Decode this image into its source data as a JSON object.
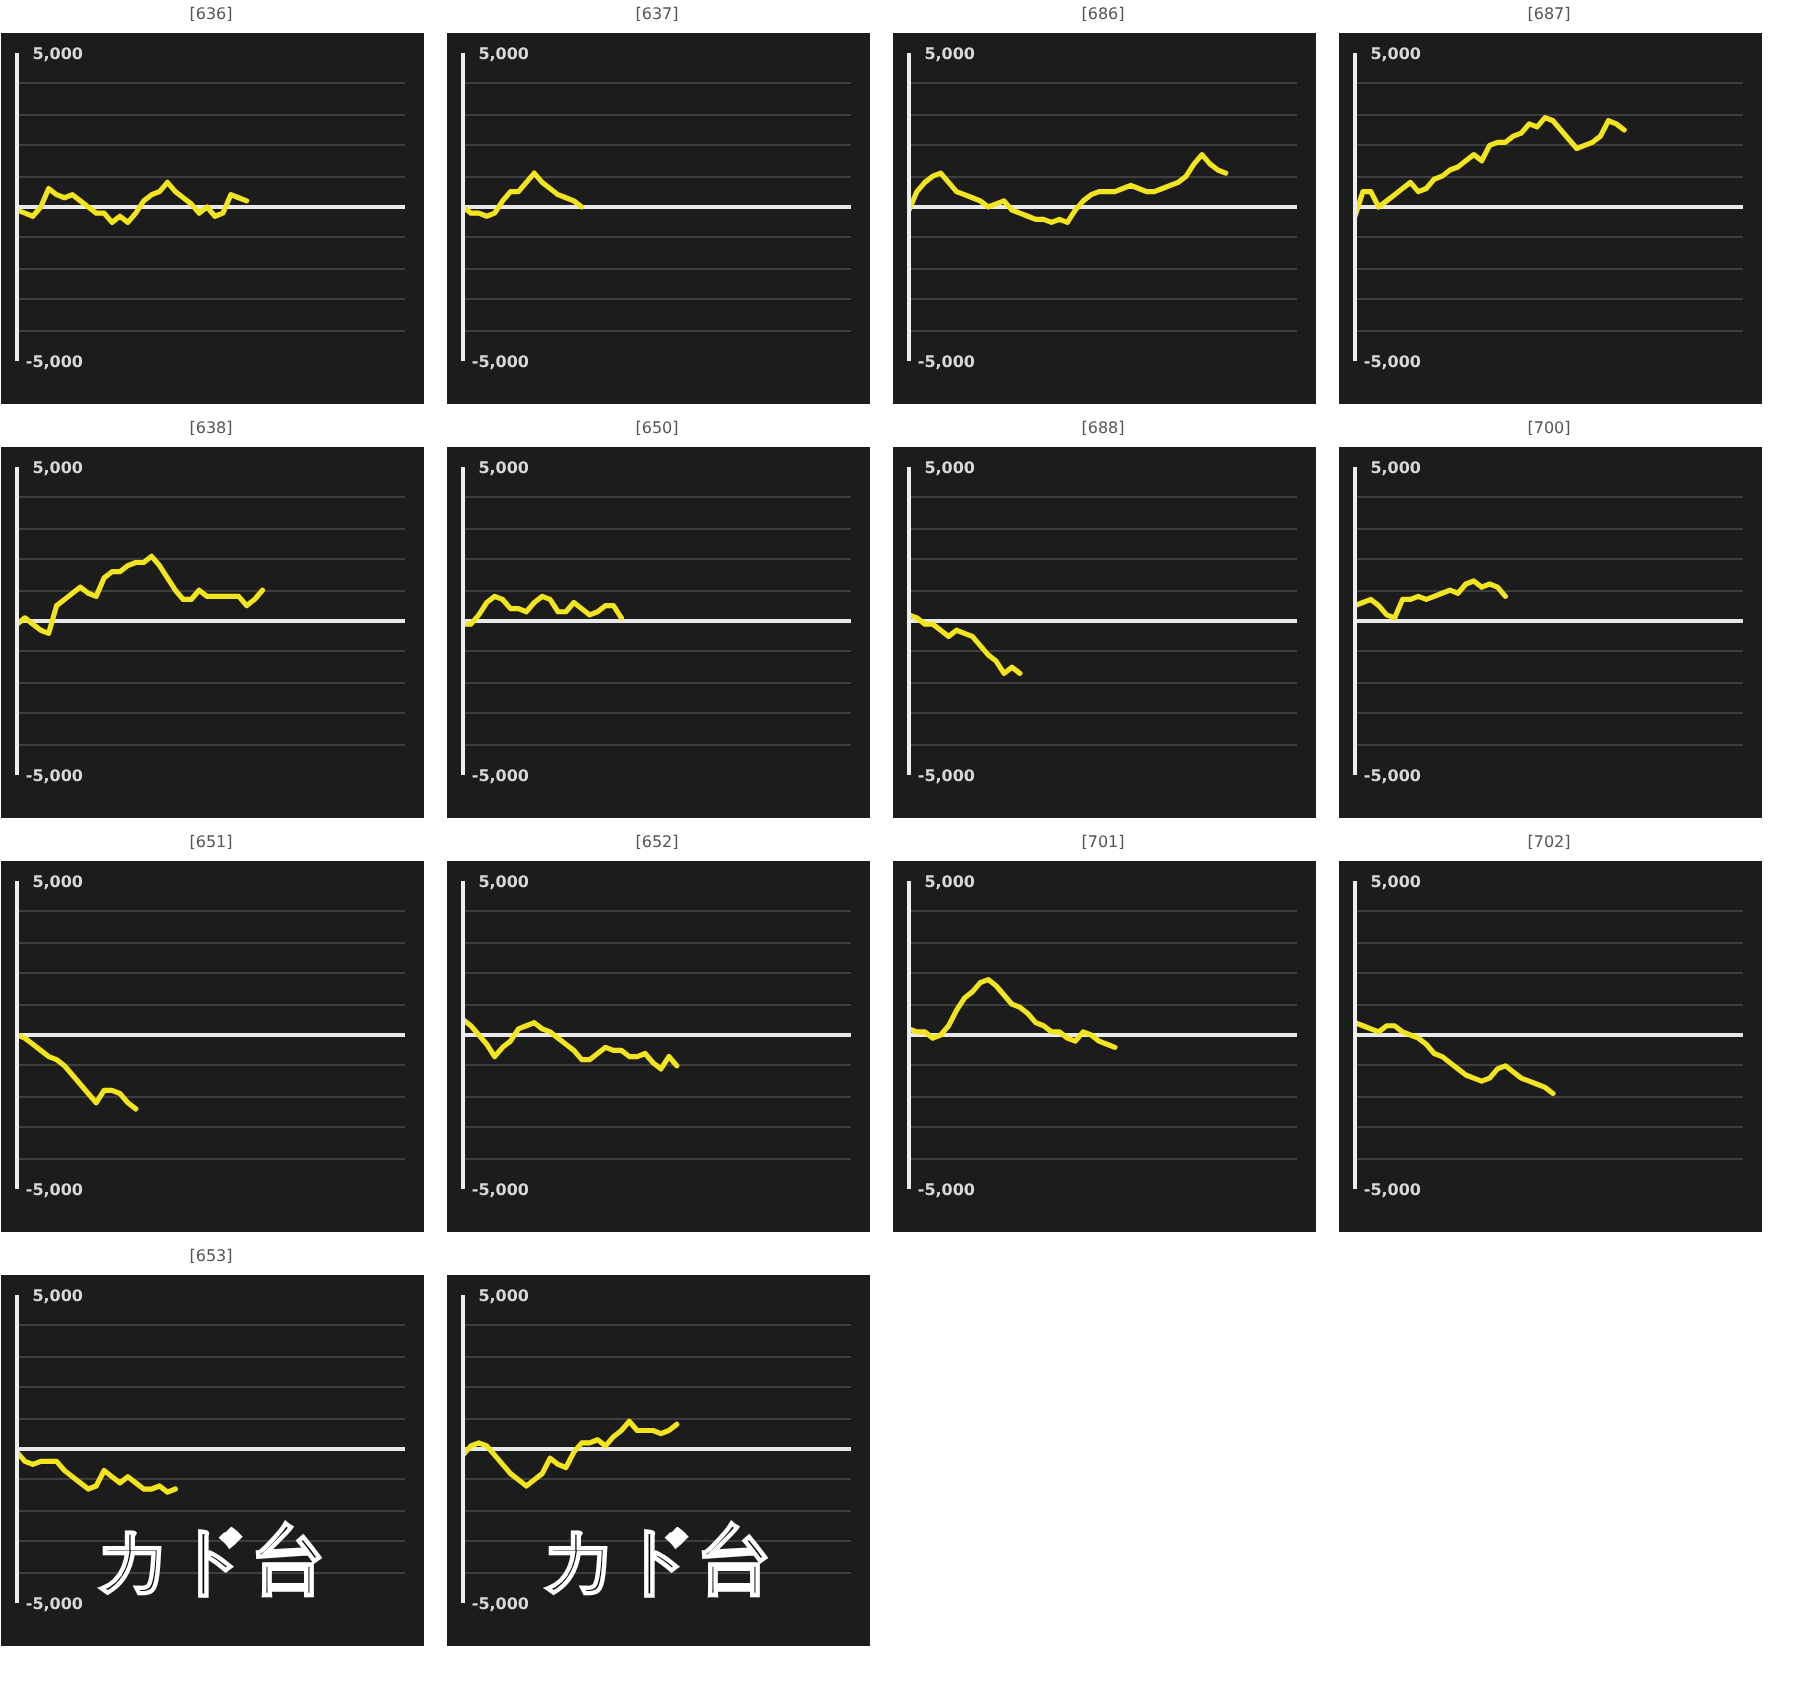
{
  "chart_data": [
    {
      "type": "line",
      "title": "[636]",
      "categories": [
        null,
        null,
        null,
        null,
        null,
        null,
        null,
        null,
        null,
        null,
        null,
        null,
        null,
        null,
        null,
        null,
        null,
        null,
        null,
        null,
        null,
        null,
        null,
        null,
        null,
        null,
        null,
        null,
        null,
        null,
        null,
        null,
        null,
        null,
        null,
        null,
        null,
        null,
        null,
        null,
        null,
        null,
        null,
        null,
        null,
        null,
        null,
        null,
        null,
        null
      ],
      "series": [
        {
          "color": "#f2e520",
          "values": [
            -100,
            -200,
            -300,
            0,
            600,
            400,
            300,
            400,
            200,
            0,
            -200,
            -200,
            -500,
            -300,
            -500,
            -200,
            200,
            400,
            500,
            800,
            500,
            300,
            100,
            -200,
            0,
            -300,
            -200,
            400,
            300,
            200,
            null,
            null,
            null,
            null,
            null,
            null,
            null,
            null,
            null,
            null,
            null,
            null,
            null,
            null,
            null,
            null,
            null,
            null,
            null,
            null
          ]
        }
      ],
      "ylim": [
        -5000,
        5000
      ],
      "yticks": [
        {
          "value": 5000,
          "label": "5,000"
        },
        {
          "value": 4000,
          "label": null
        },
        {
          "value": 3000,
          "label": null
        },
        {
          "value": 2000,
          "label": null
        },
        {
          "value": 1000,
          "label": null
        },
        {
          "value": 0,
          "label": null
        },
        {
          "value": -1000,
          "label": null
        },
        {
          "value": -2000,
          "label": null
        },
        {
          "value": -3000,
          "label": null
        },
        {
          "value": -4000,
          "label": null
        },
        {
          "value": -5000,
          "label": "-5,000"
        }
      ],
      "grid": "y",
      "tick_labels": "y",
      "ref_lines": [
        {
          "axis": "y",
          "value": 0,
          "color": "#e8e8e8"
        }
      ]
    },
    {
      "type": "line",
      "title": "[637]",
      "categories": [
        null,
        null,
        null,
        null,
        null,
        null,
        null,
        null,
        null,
        null,
        null,
        null,
        null,
        null,
        null,
        null,
        null,
        null,
        null,
        null,
        null,
        null,
        null,
        null,
        null,
        null,
        null,
        null,
        null,
        null,
        null,
        null,
        null,
        null,
        null,
        null,
        null,
        null,
        null,
        null,
        null,
        null,
        null,
        null,
        null,
        null,
        null,
        null,
        null,
        null
      ],
      "series": [
        {
          "color": "#f2e520",
          "values": [
            0,
            -200,
            -200,
            -300,
            -200,
            200,
            500,
            500,
            800,
            1100,
            800,
            600,
            400,
            300,
            200,
            0,
            null,
            null,
            null,
            null,
            null,
            null,
            null,
            null,
            null,
            null,
            null,
            null,
            null,
            null,
            null,
            null,
            null,
            null,
            null,
            null,
            null,
            null,
            null,
            null,
            null,
            null,
            null,
            null,
            null,
            null,
            null,
            null,
            null,
            null
          ]
        }
      ],
      "ylim": [
        -5000,
        5000
      ],
      "yticks": [
        {
          "value": 5000,
          "label": "5,000"
        },
        {
          "value": 4000,
          "label": null
        },
        {
          "value": 3000,
          "label": null
        },
        {
          "value": 2000,
          "label": null
        },
        {
          "value": 1000,
          "label": null
        },
        {
          "value": 0,
          "label": null
        },
        {
          "value": -1000,
          "label": null
        },
        {
          "value": -2000,
          "label": null
        },
        {
          "value": -3000,
          "label": null
        },
        {
          "value": -4000,
          "label": null
        },
        {
          "value": -5000,
          "label": "-5,000"
        }
      ],
      "grid": "y",
      "tick_labels": "y",
      "ref_lines": [
        {
          "axis": "y",
          "value": 0,
          "color": "#e8e8e8"
        }
      ]
    },
    {
      "type": "line",
      "title": "[686]",
      "categories": [
        null,
        null,
        null,
        null,
        null,
        null,
        null,
        null,
        null,
        null,
        null,
        null,
        null,
        null,
        null,
        null,
        null,
        null,
        null,
        null,
        null,
        null,
        null,
        null,
        null,
        null,
        null,
        null,
        null,
        null,
        null,
        null,
        null,
        null,
        null,
        null,
        null,
        null,
        null,
        null,
        null,
        null,
        null,
        null,
        null,
        null,
        null,
        null,
        null,
        null
      ],
      "series": [
        {
          "color": "#f2e520",
          "values": [
            -100,
            500,
            800,
            1000,
            1100,
            800,
            500,
            400,
            300,
            200,
            0,
            100,
            200,
            -100,
            -200,
            -300,
            -400,
            -400,
            -500,
            -400,
            -500,
            -100,
            200,
            400,
            500,
            500,
            500,
            600,
            700,
            600,
            500,
            500,
            600,
            700,
            800,
            1000,
            1400,
            1700,
            1400,
            1200,
            1100,
            null,
            null,
            null,
            null,
            null,
            null,
            null,
            null,
            null
          ]
        }
      ],
      "ylim": [
        -5000,
        5000
      ],
      "yticks": [
        {
          "value": 5000,
          "label": "5,000"
        },
        {
          "value": 4000,
          "label": null
        },
        {
          "value": 3000,
          "label": null
        },
        {
          "value": 2000,
          "label": null
        },
        {
          "value": 1000,
          "label": null
        },
        {
          "value": 0,
          "label": null
        },
        {
          "value": -1000,
          "label": null
        },
        {
          "value": -2000,
          "label": null
        },
        {
          "value": -3000,
          "label": null
        },
        {
          "value": -4000,
          "label": null
        },
        {
          "value": -5000,
          "label": "-5,000"
        }
      ],
      "grid": "y",
      "tick_labels": "y",
      "ref_lines": [
        {
          "axis": "y",
          "value": 0,
          "color": "#e8e8e8"
        }
      ]
    },
    {
      "type": "line",
      "title": "[687]",
      "categories": [
        null,
        null,
        null,
        null,
        null,
        null,
        null,
        null,
        null,
        null,
        null,
        null,
        null,
        null,
        null,
        null,
        null,
        null,
        null,
        null,
        null,
        null,
        null,
        null,
        null,
        null,
        null,
        null,
        null,
        null,
        null,
        null,
        null,
        null,
        null,
        null,
        null,
        null,
        null,
        null,
        null,
        null,
        null,
        null,
        null,
        null,
        null,
        null,
        null,
        null
      ],
      "series": [
        {
          "color": "#f2e520",
          "values": [
            -300,
            500,
            500,
            0,
            200,
            400,
            600,
            800,
            500,
            600,
            900,
            1000,
            1200,
            1300,
            1500,
            1700,
            1500,
            2000,
            2100,
            2100,
            2300,
            2400,
            2700,
            2600,
            2900,
            2800,
            2500,
            2200,
            1900,
            2000,
            2100,
            2300,
            2800,
            2700,
            2500,
            null,
            null,
            null,
            null,
            null,
            null,
            null,
            null,
            null,
            null,
            null,
            null,
            null,
            null,
            null
          ]
        }
      ],
      "ylim": [
        -5000,
        5000
      ],
      "yticks": [
        {
          "value": 5000,
          "label": "5,000"
        },
        {
          "value": 4000,
          "label": null
        },
        {
          "value": 3000,
          "label": null
        },
        {
          "value": 2000,
          "label": null
        },
        {
          "value": 1000,
          "label": null
        },
        {
          "value": 0,
          "label": null
        },
        {
          "value": -1000,
          "label": null
        },
        {
          "value": -2000,
          "label": null
        },
        {
          "value": -3000,
          "label": null
        },
        {
          "value": -4000,
          "label": null
        },
        {
          "value": -5000,
          "label": "-5,000"
        }
      ],
      "grid": "y",
      "tick_labels": "y",
      "ref_lines": [
        {
          "axis": "y",
          "value": 0,
          "color": "#e8e8e8"
        }
      ]
    },
    {
      "type": "line",
      "title": "[638]",
      "categories": [
        null,
        null,
        null,
        null,
        null,
        null,
        null,
        null,
        null,
        null,
        null,
        null,
        null,
        null,
        null,
        null,
        null,
        null,
        null,
        null,
        null,
        null,
        null,
        null,
        null,
        null,
        null,
        null,
        null,
        null,
        null,
        null,
        null,
        null,
        null,
        null,
        null,
        null,
        null,
        null,
        null,
        null,
        null,
        null,
        null,
        null,
        null,
        null,
        null,
        null
      ],
      "series": [
        {
          "color": "#f2e520",
          "values": [
            -100,
            100,
            -100,
            -300,
            -400,
            500,
            700,
            900,
            1100,
            900,
            800,
            1400,
            1600,
            1600,
            1800,
            1900,
            1900,
            2100,
            1800,
            1400,
            1000,
            700,
            700,
            1000,
            800,
            800,
            800,
            800,
            800,
            500,
            700,
            1000,
            null,
            null,
            null,
            null,
            null,
            null,
            null,
            null,
            null,
            null,
            null,
            null,
            null,
            null,
            null,
            null,
            null,
            null
          ]
        }
      ],
      "ylim": [
        -5000,
        5000
      ],
      "yticks": [
        {
          "value": 5000,
          "label": "5,000"
        },
        {
          "value": 4000,
          "label": null
        },
        {
          "value": 3000,
          "label": null
        },
        {
          "value": 2000,
          "label": null
        },
        {
          "value": 1000,
          "label": null
        },
        {
          "value": 0,
          "label": null
        },
        {
          "value": -1000,
          "label": null
        },
        {
          "value": -2000,
          "label": null
        },
        {
          "value": -3000,
          "label": null
        },
        {
          "value": -4000,
          "label": null
        },
        {
          "value": -5000,
          "label": "-5,000"
        }
      ],
      "grid": "y",
      "tick_labels": "y",
      "ref_lines": [
        {
          "axis": "y",
          "value": 0,
          "color": "#e8e8e8"
        }
      ]
    },
    {
      "type": "line",
      "title": "[650]",
      "categories": [
        null,
        null,
        null,
        null,
        null,
        null,
        null,
        null,
        null,
        null,
        null,
        null,
        null,
        null,
        null,
        null,
        null,
        null,
        null,
        null,
        null,
        null,
        null,
        null,
        null,
        null,
        null,
        null,
        null,
        null,
        null,
        null,
        null,
        null,
        null,
        null,
        null,
        null,
        null,
        null,
        null,
        null,
        null,
        null,
        null,
        null,
        null,
        null,
        null,
        null
      ],
      "series": [
        {
          "color": "#f2e520",
          "values": [
            -100,
            -100,
            200,
            600,
            800,
            700,
            400,
            400,
            300,
            600,
            800,
            700,
            300,
            300,
            600,
            400,
            200,
            300,
            500,
            500,
            100,
            null,
            null,
            null,
            null,
            null,
            null,
            null,
            null,
            null,
            null,
            null,
            null,
            null,
            null,
            null,
            null,
            null,
            null,
            null,
            null,
            null,
            null,
            null,
            null,
            null,
            null,
            null,
            null,
            null
          ]
        }
      ],
      "ylim": [
        -5000,
        5000
      ],
      "yticks": [
        {
          "value": 5000,
          "label": "5,000"
        },
        {
          "value": 4000,
          "label": null
        },
        {
          "value": 3000,
          "label": null
        },
        {
          "value": 2000,
          "label": null
        },
        {
          "value": 1000,
          "label": null
        },
        {
          "value": 0,
          "label": null
        },
        {
          "value": -1000,
          "label": null
        },
        {
          "value": -2000,
          "label": null
        },
        {
          "value": -3000,
          "label": null
        },
        {
          "value": -4000,
          "label": null
        },
        {
          "value": -5000,
          "label": "-5,000"
        }
      ],
      "grid": "y",
      "tick_labels": "y",
      "ref_lines": [
        {
          "axis": "y",
          "value": 0,
          "color": "#e8e8e8"
        }
      ]
    },
    {
      "type": "line",
      "title": "[688]",
      "categories": [
        null,
        null,
        null,
        null,
        null,
        null,
        null,
        null,
        null,
        null,
        null,
        null,
        null,
        null,
        null,
        null,
        null,
        null,
        null,
        null,
        null,
        null,
        null,
        null,
        null,
        null,
        null,
        null,
        null,
        null,
        null,
        null,
        null,
        null,
        null,
        null,
        null,
        null,
        null,
        null,
        null,
        null,
        null,
        null,
        null,
        null,
        null,
        null,
        null,
        null
      ],
      "series": [
        {
          "color": "#f2e520",
          "values": [
            200,
            100,
            -100,
            -100,
            -300,
            -500,
            -300,
            -400,
            -500,
            -800,
            -1100,
            -1300,
            -1700,
            -1500,
            -1700,
            null,
            null,
            null,
            null,
            null,
            null,
            null,
            null,
            null,
            null,
            null,
            null,
            null,
            null,
            null,
            null,
            null,
            null,
            null,
            null,
            null,
            null,
            null,
            null,
            null,
            null,
            null,
            null,
            null,
            null,
            null,
            null,
            null,
            null,
            null
          ]
        }
      ],
      "ylim": [
        -5000,
        5000
      ],
      "yticks": [
        {
          "value": 5000,
          "label": "5,000"
        },
        {
          "value": 4000,
          "label": null
        },
        {
          "value": 3000,
          "label": null
        },
        {
          "value": 2000,
          "label": null
        },
        {
          "value": 1000,
          "label": null
        },
        {
          "value": 0,
          "label": null
        },
        {
          "value": -1000,
          "label": null
        },
        {
          "value": -2000,
          "label": null
        },
        {
          "value": -3000,
          "label": null
        },
        {
          "value": -4000,
          "label": null
        },
        {
          "value": -5000,
          "label": "-5,000"
        }
      ],
      "grid": "y",
      "tick_labels": "y",
      "ref_lines": [
        {
          "axis": "y",
          "value": 0,
          "color": "#e8e8e8"
        }
      ]
    },
    {
      "type": "line",
      "title": "[700]",
      "categories": [
        null,
        null,
        null,
        null,
        null,
        null,
        null,
        null,
        null,
        null,
        null,
        null,
        null,
        null,
        null,
        null,
        null,
        null,
        null,
        null,
        null,
        null,
        null,
        null,
        null,
        null,
        null,
        null,
        null,
        null,
        null,
        null,
        null,
        null,
        null,
        null,
        null,
        null,
        null,
        null,
        null,
        null,
        null,
        null,
        null,
        null,
        null,
        null,
        null,
        null
      ],
      "series": [
        {
          "color": "#f2e520",
          "values": [
            500,
            600,
            700,
            500,
            200,
            100,
            700,
            700,
            800,
            700,
            800,
            900,
            1000,
            900,
            1200,
            1300,
            1100,
            1200,
            1100,
            800,
            null,
            null,
            null,
            null,
            null,
            null,
            null,
            null,
            null,
            null,
            null,
            null,
            null,
            null,
            null,
            null,
            null,
            null,
            null,
            null,
            null,
            null,
            null,
            null,
            null,
            null,
            null,
            null,
            null,
            null
          ]
        }
      ],
      "ylim": [
        -5000,
        5000
      ],
      "yticks": [
        {
          "value": 5000,
          "label": "5,000"
        },
        {
          "value": 4000,
          "label": null
        },
        {
          "value": 3000,
          "label": null
        },
        {
          "value": 2000,
          "label": null
        },
        {
          "value": 1000,
          "label": null
        },
        {
          "value": 0,
          "label": null
        },
        {
          "value": -1000,
          "label": null
        },
        {
          "value": -2000,
          "label": null
        },
        {
          "value": -3000,
          "label": null
        },
        {
          "value": -4000,
          "label": null
        },
        {
          "value": -5000,
          "label": "-5,000"
        }
      ],
      "grid": "y",
      "tick_labels": "y",
      "ref_lines": [
        {
          "axis": "y",
          "value": 0,
          "color": "#e8e8e8"
        }
      ]
    },
    {
      "type": "line",
      "title": "[651]",
      "categories": [
        null,
        null,
        null,
        null,
        null,
        null,
        null,
        null,
        null,
        null,
        null,
        null,
        null,
        null,
        null,
        null,
        null,
        null,
        null,
        null,
        null,
        null,
        null,
        null,
        null,
        null,
        null,
        null,
        null,
        null,
        null,
        null,
        null,
        null,
        null,
        null,
        null,
        null,
        null,
        null,
        null,
        null,
        null,
        null,
        null,
        null,
        null,
        null,
        null,
        null
      ],
      "series": [
        {
          "color": "#f2e520",
          "values": [
            0,
            -100,
            -300,
            -500,
            -700,
            -800,
            -1000,
            -1300,
            -1600,
            -1900,
            -2200,
            -1800,
            -1800,
            -1900,
            -2200,
            -2400,
            null,
            null,
            null,
            null,
            null,
            null,
            null,
            null,
            null,
            null,
            null,
            null,
            null,
            null,
            null,
            null,
            null,
            null,
            null,
            null,
            null,
            null,
            null,
            null,
            null,
            null,
            null,
            null,
            null,
            null,
            null,
            null,
            null,
            null
          ]
        }
      ],
      "ylim": [
        -5000,
        5000
      ],
      "yticks": [
        {
          "value": 5000,
          "label": "5,000"
        },
        {
          "value": 4000,
          "label": null
        },
        {
          "value": 3000,
          "label": null
        },
        {
          "value": 2000,
          "label": null
        },
        {
          "value": 1000,
          "label": null
        },
        {
          "value": 0,
          "label": null
        },
        {
          "value": -1000,
          "label": null
        },
        {
          "value": -2000,
          "label": null
        },
        {
          "value": -3000,
          "label": null
        },
        {
          "value": -4000,
          "label": null
        },
        {
          "value": -5000,
          "label": "-5,000"
        }
      ],
      "grid": "y",
      "tick_labels": "y",
      "ref_lines": [
        {
          "axis": "y",
          "value": 0,
          "color": "#e8e8e8"
        }
      ]
    },
    {
      "type": "line",
      "title": "[652]",
      "categories": [
        null,
        null,
        null,
        null,
        null,
        null,
        null,
        null,
        null,
        null,
        null,
        null,
        null,
        null,
        null,
        null,
        null,
        null,
        null,
        null,
        null,
        null,
        null,
        null,
        null,
        null,
        null,
        null,
        null,
        null,
        null,
        null,
        null,
        null,
        null,
        null,
        null,
        null,
        null,
        null,
        null,
        null,
        null,
        null,
        null,
        null,
        null,
        null,
        null,
        null
      ],
      "series": [
        {
          "color": "#f2e520",
          "values": [
            500,
            300,
            0,
            -300,
            -700,
            -400,
            -200,
            200,
            300,
            400,
            200,
            100,
            -100,
            -300,
            -500,
            -800,
            -800,
            -600,
            -400,
            -500,
            -500,
            -700,
            -700,
            -600,
            -900,
            -1100,
            -700,
            -1000,
            null,
            null,
            null,
            null,
            null,
            null,
            null,
            null,
            null,
            null,
            null,
            null,
            null,
            null,
            null,
            null,
            null,
            null,
            null,
            null,
            null,
            null
          ]
        }
      ],
      "ylim": [
        -5000,
        5000
      ],
      "yticks": [
        {
          "value": 5000,
          "label": "5,000"
        },
        {
          "value": 4000,
          "label": null
        },
        {
          "value": 3000,
          "label": null
        },
        {
          "value": 2000,
          "label": null
        },
        {
          "value": 1000,
          "label": null
        },
        {
          "value": 0,
          "label": null
        },
        {
          "value": -1000,
          "label": null
        },
        {
          "value": -2000,
          "label": null
        },
        {
          "value": -3000,
          "label": null
        },
        {
          "value": -4000,
          "label": null
        },
        {
          "value": -5000,
          "label": "-5,000"
        }
      ],
      "grid": "y",
      "tick_labels": "y",
      "ref_lines": [
        {
          "axis": "y",
          "value": 0,
          "color": "#e8e8e8"
        }
      ]
    },
    {
      "type": "line",
      "title": "[701]",
      "categories": [
        null,
        null,
        null,
        null,
        null,
        null,
        null,
        null,
        null,
        null,
        null,
        null,
        null,
        null,
        null,
        null,
        null,
        null,
        null,
        null,
        null,
        null,
        null,
        null,
        null,
        null,
        null,
        null,
        null,
        null,
        null,
        null,
        null,
        null,
        null,
        null,
        null,
        null,
        null,
        null,
        null,
        null,
        null,
        null,
        null,
        null,
        null,
        null,
        null,
        null
      ],
      "series": [
        {
          "color": "#f2e520",
          "values": [
            200,
            100,
            100,
            -100,
            0,
            300,
            800,
            1200,
            1400,
            1700,
            1800,
            1600,
            1300,
            1000,
            900,
            700,
            400,
            300,
            100,
            100,
            -100,
            -200,
            100,
            0,
            -200,
            -300,
            -400,
            null,
            null,
            null,
            null,
            null,
            null,
            null,
            null,
            null,
            null,
            null,
            null,
            null,
            null,
            null,
            null,
            null,
            null,
            null,
            null,
            null,
            null,
            null
          ]
        }
      ],
      "ylim": [
        -5000,
        5000
      ],
      "yticks": [
        {
          "value": 5000,
          "label": "5,000"
        },
        {
          "value": 4000,
          "label": null
        },
        {
          "value": 3000,
          "label": null
        },
        {
          "value": 2000,
          "label": null
        },
        {
          "value": 1000,
          "label": null
        },
        {
          "value": 0,
          "label": null
        },
        {
          "value": -1000,
          "label": null
        },
        {
          "value": -2000,
          "label": null
        },
        {
          "value": -3000,
          "label": null
        },
        {
          "value": -4000,
          "label": null
        },
        {
          "value": -5000,
          "label": "-5,000"
        }
      ],
      "grid": "y",
      "tick_labels": "y",
      "ref_lines": [
        {
          "axis": "y",
          "value": 0,
          "color": "#e8e8e8"
        }
      ]
    },
    {
      "type": "line",
      "title": "[702]",
      "categories": [
        null,
        null,
        null,
        null,
        null,
        null,
        null,
        null,
        null,
        null,
        null,
        null,
        null,
        null,
        null,
        null,
        null,
        null,
        null,
        null,
        null,
        null,
        null,
        null,
        null,
        null,
        null,
        null,
        null,
        null,
        null,
        null,
        null,
        null,
        null,
        null,
        null,
        null,
        null,
        null,
        null,
        null,
        null,
        null,
        null,
        null,
        null,
        null,
        null,
        null
      ],
      "series": [
        {
          "color": "#f2e520",
          "values": [
            400,
            300,
            200,
            100,
            300,
            300,
            100,
            0,
            -100,
            -300,
            -600,
            -700,
            -900,
            -1100,
            -1300,
            -1400,
            -1500,
            -1400,
            -1100,
            -1000,
            -1200,
            -1400,
            -1500,
            -1600,
            -1700,
            -1900,
            null,
            null,
            null,
            null,
            null,
            null,
            null,
            null,
            null,
            null,
            null,
            null,
            null,
            null,
            null,
            null,
            null,
            null,
            null,
            null,
            null,
            null,
            null,
            null
          ]
        }
      ],
      "ylim": [
        -5000,
        5000
      ],
      "yticks": [
        {
          "value": 5000,
          "label": "5,000"
        },
        {
          "value": 4000,
          "label": null
        },
        {
          "value": 3000,
          "label": null
        },
        {
          "value": 2000,
          "label": null
        },
        {
          "value": 1000,
          "label": null
        },
        {
          "value": 0,
          "label": null
        },
        {
          "value": -1000,
          "label": null
        },
        {
          "value": -2000,
          "label": null
        },
        {
          "value": -3000,
          "label": null
        },
        {
          "value": -4000,
          "label": null
        },
        {
          "value": -5000,
          "label": "-5,000"
        }
      ],
      "grid": "y",
      "tick_labels": "y",
      "ref_lines": [
        {
          "axis": "y",
          "value": 0,
          "color": "#e8e8e8"
        }
      ]
    },
    {
      "type": "line",
      "title": "[653]",
      "categories": [
        null,
        null,
        null,
        null,
        null,
        null,
        null,
        null,
        null,
        null,
        null,
        null,
        null,
        null,
        null,
        null,
        null,
        null,
        null,
        null,
        null,
        null,
        null,
        null,
        null,
        null,
        null,
        null,
        null,
        null,
        null,
        null,
        null,
        null,
        null,
        null,
        null,
        null,
        null,
        null,
        null,
        null,
        null,
        null,
        null,
        null,
        null,
        null,
        null,
        null
      ],
      "series": [
        {
          "color": "#f2e520",
          "values": [
            -100,
            -400,
            -500,
            -400,
            -400,
            -400,
            -700,
            -900,
            -1100,
            -1300,
            -1200,
            -700,
            -900,
            -1100,
            -900,
            -1100,
            -1300,
            -1300,
            -1200,
            -1400,
            -1300,
            null,
            null,
            null,
            null,
            null,
            null,
            null,
            null,
            null,
            null,
            null,
            null,
            null,
            null,
            null,
            null,
            null,
            null,
            null,
            null,
            null,
            null,
            null,
            null,
            null,
            null,
            null,
            null,
            null
          ]
        }
      ],
      "ylim": [
        -5000,
        5000
      ],
      "yticks": [
        {
          "value": 5000,
          "label": "5,000"
        },
        {
          "value": 4000,
          "label": null
        },
        {
          "value": 3000,
          "label": null
        },
        {
          "value": 2000,
          "label": null
        },
        {
          "value": 1000,
          "label": null
        },
        {
          "value": 0,
          "label": null
        },
        {
          "value": -1000,
          "label": null
        },
        {
          "value": -2000,
          "label": null
        },
        {
          "value": -3000,
          "label": null
        },
        {
          "value": -4000,
          "label": null
        },
        {
          "value": -5000,
          "label": "-5,000"
        }
      ],
      "grid": "y",
      "tick_labels": "y",
      "ref_lines": [
        {
          "axis": "y",
          "value": 0,
          "color": "#e8e8e8"
        }
      ],
      "annotations": [
        "カド台"
      ]
    },
    {
      "type": "line",
      "categories": [
        null,
        null,
        null,
        null,
        null,
        null,
        null,
        null,
        null,
        null,
        null,
        null,
        null,
        null,
        null,
        null,
        null,
        null,
        null,
        null,
        null,
        null,
        null,
        null,
        null,
        null,
        null,
        null,
        null,
        null,
        null,
        null,
        null,
        null,
        null,
        null,
        null,
        null,
        null,
        null,
        null,
        null,
        null,
        null,
        null,
        null,
        null,
        null,
        null,
        null
      ],
      "series": [
        {
          "color": "#f2e520",
          "values": [
            -200,
            100,
            200,
            100,
            -200,
            -500,
            -800,
            -1000,
            -1200,
            -1000,
            -800,
            -300,
            -500,
            -600,
            -100,
            200,
            200,
            300,
            100,
            400,
            600,
            900,
            600,
            600,
            600,
            500,
            600,
            800,
            null,
            null,
            null,
            null,
            null,
            null,
            null,
            null,
            null,
            null,
            null,
            null,
            null,
            null,
            null,
            null,
            null,
            null,
            null,
            null,
            null,
            null
          ]
        }
      ],
      "ylim": [
        -5000,
        5000
      ],
      "yticks": [
        {
          "value": 5000,
          "label": "5,000"
        },
        {
          "value": 4000,
          "label": null
        },
        {
          "value": 3000,
          "label": null
        },
        {
          "value": 2000,
          "label": null
        },
        {
          "value": 1000,
          "label": null
        },
        {
          "value": 0,
          "label": null
        },
        {
          "value": -1000,
          "label": null
        },
        {
          "value": -2000,
          "label": null
        },
        {
          "value": -3000,
          "label": null
        },
        {
          "value": -4000,
          "label": null
        },
        {
          "value": -5000,
          "label": "-5,000"
        }
      ],
      "grid": "y",
      "tick_labels": "y",
      "ref_lines": [
        {
          "axis": "y",
          "value": 0,
          "color": "#e8e8e8"
        }
      ],
      "annotations": [
        "カド台"
      ]
    }
  ]
}
